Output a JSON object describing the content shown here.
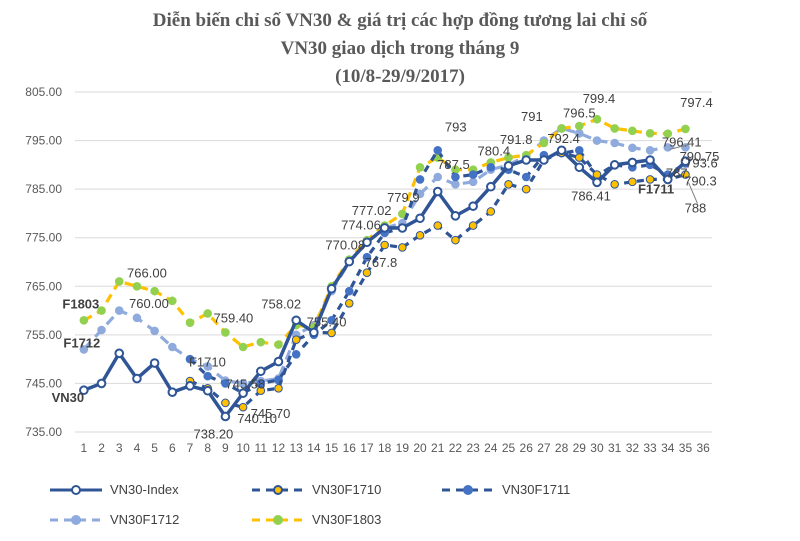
{
  "title_lines": [
    "Diễn biến chỉ số VN30 & giá trị các hợp đồng tương lai chỉ số",
    "VN30 giao dịch trong tháng 9",
    "(10/8-29/9/2017)"
  ],
  "chart_data": {
    "type": "line",
    "ylim": [
      735,
      805
    ],
    "yticks": [
      "735.00",
      "745.00",
      "755.00",
      "765.00",
      "775.00",
      "785.00",
      "795.00",
      "805.00"
    ],
    "x": [
      1,
      2,
      3,
      4,
      5,
      6,
      7,
      8,
      9,
      10,
      11,
      12,
      13,
      14,
      15,
      16,
      17,
      18,
      19,
      20,
      21,
      22,
      23,
      24,
      25,
      26,
      27,
      28,
      29,
      30,
      31,
      32,
      33,
      34,
      35,
      36
    ],
    "x_tick_labels": [
      "1",
      "2",
      "3",
      "4",
      "5",
      "6",
      "7",
      "8",
      "9",
      "10",
      "11",
      "12",
      "13",
      "14",
      "15",
      "16",
      "17",
      "18",
      "19",
      "20",
      "21",
      "22",
      "23",
      "24",
      "25",
      "26",
      "27",
      "28",
      "29",
      "30",
      "31",
      "32",
      "33",
      "34",
      "35",
      "36"
    ],
    "grid": true,
    "legend_placement": "bottom",
    "series": [
      {
        "name": "VN30-Index",
        "color": "#2F5597",
        "style": "solid",
        "x": [
          1,
          2,
          3,
          4,
          5,
          6,
          7,
          8,
          9,
          10,
          11,
          12,
          13,
          14,
          15,
          16,
          17,
          18,
          19,
          20,
          21,
          22,
          23,
          24,
          25,
          26,
          27,
          28,
          29,
          30,
          31,
          32,
          33,
          34,
          35,
          36
        ],
        "values": [
          743.6,
          745.0,
          751.2,
          746.0,
          749.2,
          743.2,
          744.5,
          743.5,
          738.2,
          743.0,
          747.5,
          749.5,
          758.0,
          755.5,
          764.5,
          770.08,
          774.06,
          777.02,
          777.0,
          779.0,
          784.5,
          779.5,
          781.5,
          785.5,
          789.8,
          791.0,
          791.0,
          793.0,
          789.5,
          786.41,
          790.0,
          790.5,
          791.0,
          787.0,
          790.75,
          null
        ]
      },
      {
        "name": "VN30F1710",
        "color": "#2F5597",
        "marker_fill": "#FFC000",
        "style": "dash",
        "x": [
          7,
          8,
          9,
          10,
          11,
          12,
          13,
          14,
          15,
          16,
          17,
          18,
          19,
          20,
          21,
          22,
          23,
          24,
          25,
          26,
          27,
          28,
          29,
          30,
          31,
          32,
          33,
          34,
          35
        ],
        "values": [
          745.5,
          744.0,
          741.0,
          740.1,
          743.5,
          744.0,
          754.0,
          755.5,
          755.4,
          761.5,
          767.8,
          773.5,
          773.0,
          775.5,
          777.5,
          774.5,
          777.5,
          780.4,
          786.0,
          785.0,
          791.0,
          792.5,
          791.5,
          788.0,
          786.0,
          786.5,
          787.0,
          787.0,
          788.0
        ]
      },
      {
        "name": "VN30F1711",
        "color": "#2F5597",
        "marker_fill": "#4472C4",
        "style": "dash",
        "x": [
          7,
          8,
          9,
          10,
          11,
          12,
          13,
          14,
          15,
          16,
          17,
          18,
          19,
          20,
          21,
          22,
          23,
          24,
          25,
          26,
          27,
          28,
          29,
          30,
          31,
          32,
          33,
          34,
          35
        ],
        "values": [
          750.0,
          746.5,
          745.0,
          743.0,
          745.0,
          745.7,
          751.0,
          755.0,
          758.0,
          764.0,
          771.0,
          776.0,
          777.0,
          787.0,
          793.0,
          787.5,
          788.0,
          789.5,
          789.0,
          787.5,
          792.0,
          792.4,
          793.0,
          787.8,
          790.0,
          789.5,
          790.0,
          788.0,
          790.3
        ]
      },
      {
        "name": "VN30F1712",
        "color": "#8FAADC",
        "marker_fill": "#8FAADC",
        "style": "dash",
        "x": [
          1,
          2,
          3,
          4,
          5,
          6,
          7,
          8,
          9,
          10,
          11,
          12,
          13,
          14,
          15,
          16,
          17,
          18,
          19,
          20,
          21,
          22,
          23,
          24,
          25,
          26,
          27,
          28,
          29,
          30,
          31,
          32,
          33,
          34,
          35
        ],
        "values": [
          752.0,
          756.0,
          760.0,
          758.5,
          755.8,
          752.5,
          750.0,
          748.5,
          745.58,
          745.0,
          745.5,
          746.0,
          755.0,
          757.0,
          764.0,
          770.0,
          774.0,
          777.0,
          778.0,
          784.0,
          787.5,
          786.0,
          786.5,
          789.0,
          790.0,
          791.8,
          795.0,
          797.5,
          796.5,
          795.0,
          794.5,
          793.5,
          793.0,
          793.6,
          793.6
        ]
      },
      {
        "name": "VN30F1803",
        "color": "#FFC000",
        "marker_fill": "#92D050",
        "style": "dash",
        "x": [
          1,
          2,
          3,
          4,
          5,
          6,
          7,
          8,
          9,
          10,
          11,
          12,
          13,
          14,
          15,
          16,
          17,
          18,
          19,
          20,
          21,
          22,
          23,
          24,
          25,
          26,
          27,
          28,
          29,
          30,
          31,
          32,
          33,
          34,
          35
        ],
        "values": [
          758.0,
          760.0,
          766.0,
          765.0,
          764.0,
          762.0,
          757.5,
          759.4,
          755.5,
          752.5,
          753.5,
          753.0,
          757.0,
          756.5,
          765.0,
          770.5,
          774.5,
          777.5,
          779.9,
          789.5,
          791.5,
          789.0,
          789.0,
          790.5,
          791.5,
          792.0,
          794.5,
          797.5,
          798.0,
          799.4,
          797.5,
          797.0,
          796.5,
          796.41,
          797.4
        ]
      }
    ],
    "annotations": [
      {
        "text": "805.00"
      },
      {
        "text": "766.00"
      },
      {
        "text": "760.00"
      },
      {
        "text": "759.40"
      },
      {
        "text": "758.02"
      },
      {
        "text": "745.58"
      },
      {
        "text": "745.70"
      },
      {
        "text": "755.40"
      },
      {
        "text": "738.20"
      },
      {
        "text": "740.10"
      },
      {
        "text": "770.08"
      },
      {
        "text": "774.06"
      },
      {
        "text": "777.02"
      },
      {
        "text": "767.8"
      },
      {
        "text": "779.9"
      },
      {
        "text": "793"
      },
      {
        "text": "787.5"
      },
      {
        "text": "791.8"
      },
      {
        "text": "780.4"
      },
      {
        "text": "791"
      },
      {
        "text": "799.4"
      },
      {
        "text": "796.5"
      },
      {
        "text": "792.4"
      },
      {
        "text": "786.41"
      },
      {
        "text": "797.4"
      },
      {
        "text": "796.41"
      },
      {
        "text": "793.6"
      },
      {
        "text": "790.75"
      },
      {
        "text": "790.3"
      },
      {
        "text": "787"
      },
      {
        "text": "788"
      }
    ],
    "series_tags": [
      "F1803",
      "F1712",
      "F1710",
      "VN30",
      "F1711"
    ]
  }
}
